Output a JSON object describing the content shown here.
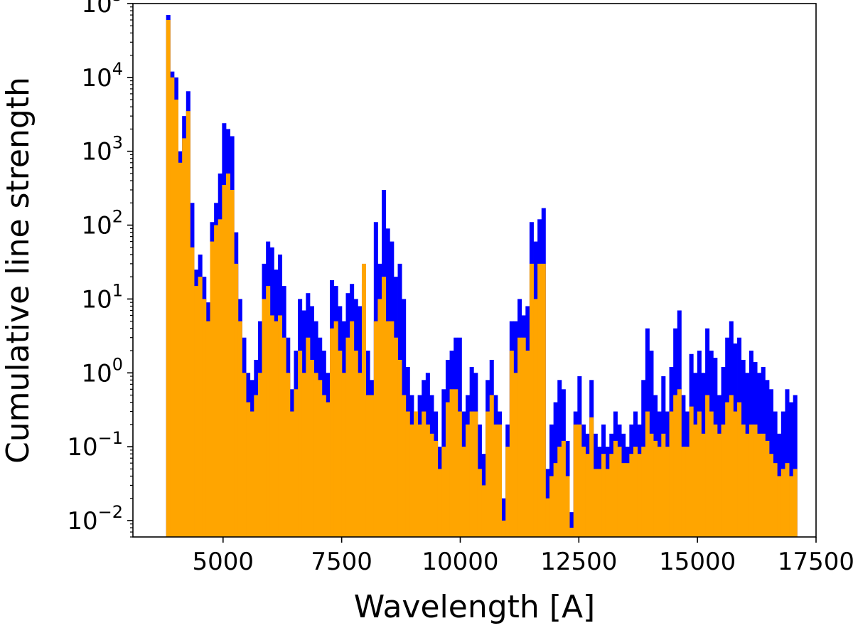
{
  "chart_data": {
    "type": "bar",
    "title": "",
    "xlabel": "Wavelength [A]",
    "ylabel": "Cumulative line strength",
    "xlim": [
      3100,
      17500
    ],
    "ylim": [
      0.006,
      100000
    ],
    "yscale": "log",
    "grid": false,
    "legend": "none",
    "x_ticks": [
      5000,
      7500,
      10000,
      12500,
      15000,
      17500
    ],
    "x_tick_labels": [
      "5000",
      "7500",
      "10000",
      "12500",
      "15000",
      "17500"
    ],
    "y_ticks": [
      0.01,
      0.1,
      1,
      10,
      100,
      1000,
      10000,
      100000
    ],
    "y_tick_labels": [
      {
        "base": "10",
        "exp": "−2"
      },
      {
        "base": "10",
        "exp": "−1"
      },
      {
        "base": "10",
        "exp": "0"
      },
      {
        "base": "10",
        "exp": "1"
      },
      {
        "base": "10",
        "exp": "2"
      },
      {
        "base": "10",
        "exp": "3"
      },
      {
        "base": "10",
        "exp": "4"
      },
      {
        "base": "10",
        "exp": "5"
      }
    ],
    "bin_start": 3800,
    "bin_end": 17100,
    "series": [
      {
        "color": "#0000ff",
        "values": [
          70000,
          12000,
          10000,
          1000,
          3000,
          6500,
          200,
          25,
          40,
          20,
          9,
          110,
          200,
          500,
          2400,
          2000,
          1600,
          80,
          10,
          3,
          1,
          0.8,
          1.5,
          5,
          30,
          60,
          50,
          25,
          40,
          15,
          3,
          0.6,
          2,
          10,
          7,
          12,
          8,
          5,
          3,
          2,
          1,
          18,
          15,
          8,
          5,
          12,
          16,
          10,
          8,
          16,
          2,
          0.8,
          110,
          30,
          300,
          90,
          60,
          20,
          30,
          10,
          1.2,
          0.5,
          0.3,
          0.5,
          0.8,
          1,
          0.5,
          0.3,
          0.1,
          0.6,
          1.5,
          2,
          3,
          3,
          0.3,
          0.5,
          1.2,
          1,
          0.2,
          0.08,
          0.8,
          1.5,
          0.5,
          0.3,
          0.02,
          0.2,
          5,
          5,
          10,
          6,
          8,
          110,
          60,
          120,
          170,
          0.05,
          0.2,
          0.4,
          0.8,
          0.6,
          0.12,
          0.013,
          0.3,
          0.9,
          0.2,
          0.15,
          0.8,
          0.15,
          0.1,
          0.2,
          0.1,
          0.15,
          0.3,
          0.2,
          0.15,
          0.1,
          0.2,
          0.3,
          0.2,
          0.8,
          4,
          2,
          0.5,
          0.3,
          0.9,
          0.3,
          1.2,
          4,
          7,
          0.5,
          0.3,
          1.8,
          1,
          2,
          1,
          4,
          2,
          1.6,
          0.5,
          1.2,
          3,
          5,
          2.5,
          3,
          1.5,
          1,
          2,
          1.4,
          1,
          1.2,
          0.8,
          0.6,
          0.3,
          0.15,
          0.3,
          0.6,
          0.4,
          0.5
        ],
        "name": ""
      },
      {
        "color": "#ffa500",
        "values": [
          60000,
          10000,
          5000,
          700,
          1500,
          3500,
          50,
          15,
          20,
          10,
          5,
          60,
          100,
          120,
          350,
          500,
          300,
          30,
          5,
          1,
          0.4,
          0.3,
          0.5,
          1,
          10,
          15,
          6,
          5,
          6,
          3,
          1,
          0.3,
          0.6,
          2,
          1,
          3,
          1.5,
          1,
          0.8,
          0.5,
          0.4,
          4,
          5,
          2,
          1,
          3,
          5,
          2,
          1,
          30,
          0.5,
          0.5,
          5,
          10,
          20,
          5,
          5,
          3,
          1.5,
          0.5,
          0.3,
          0.2,
          0.3,
          0.2,
          0.3,
          0.2,
          0.15,
          0.12,
          0.05,
          0.1,
          0.4,
          0.6,
          0.6,
          0.3,
          0.1,
          0.2,
          0.3,
          0.3,
          0.05,
          0.03,
          0.3,
          0.5,
          0.2,
          0.2,
          0.01,
          0.1,
          2,
          1,
          3,
          3,
          2,
          30,
          10,
          30,
          30,
          0.02,
          0.04,
          0.06,
          0.1,
          0.12,
          0.04,
          0.008,
          0.2,
          0.2,
          0.1,
          0.08,
          0.25,
          0.05,
          0.05,
          0.08,
          0.05,
          0.08,
          0.12,
          0.1,
          0.06,
          0.06,
          0.08,
          0.1,
          0.08,
          0.1,
          0.3,
          0.15,
          0.12,
          0.1,
          0.15,
          0.1,
          0.3,
          0.5,
          0.6,
          0.1,
          0.1,
          0.35,
          0.2,
          0.3,
          0.15,
          0.5,
          0.3,
          0.2,
          0.15,
          0.2,
          0.4,
          0.5,
          0.3,
          0.4,
          0.2,
          0.15,
          0.2,
          0.2,
          0.15,
          0.15,
          0.12,
          0.08,
          0.06,
          0.04,
          0.05,
          0.06,
          0.04,
          0.05
        ],
        "name": ""
      }
    ]
  }
}
